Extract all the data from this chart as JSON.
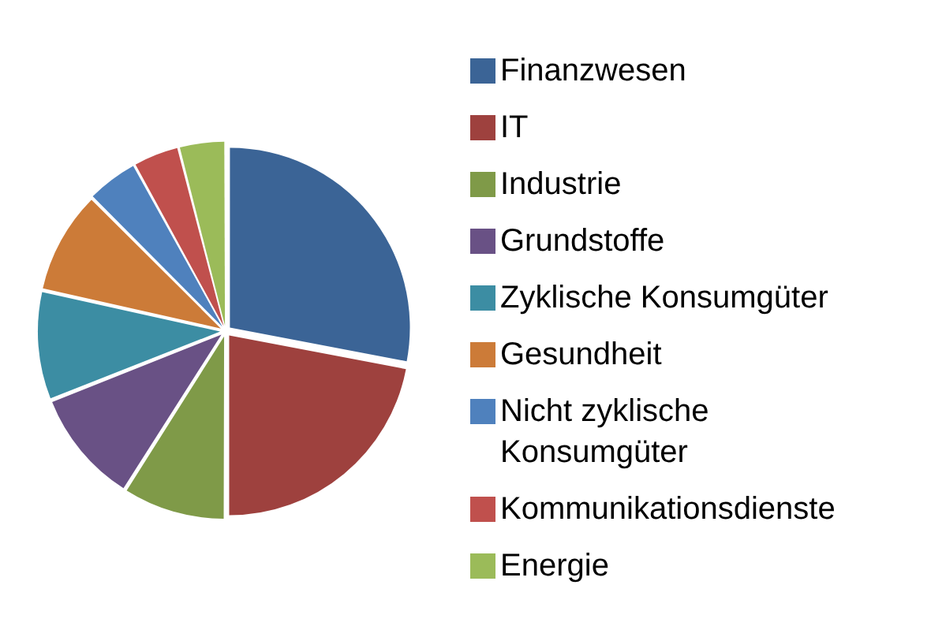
{
  "chart_data": {
    "type": "pie",
    "categories": [
      "Finanzwesen",
      "IT",
      "Industrie",
      "Grundstoffe",
      "Zyklische Konsumgüter",
      "Gesundheit",
      "Nicht zyklische Konsumgüter",
      "Kommunikationsdienste",
      "Energie"
    ],
    "values": [
      28,
      22,
      9,
      10,
      9.5,
      9,
      4.5,
      4,
      4
    ],
    "colors": [
      "#3b6496",
      "#9e413e",
      "#7f9a48",
      "#695185",
      "#3c8da3",
      "#cc7b38",
      "#4f81bd",
      "#c0504d",
      "#9bbb59"
    ],
    "legend": "right"
  }
}
